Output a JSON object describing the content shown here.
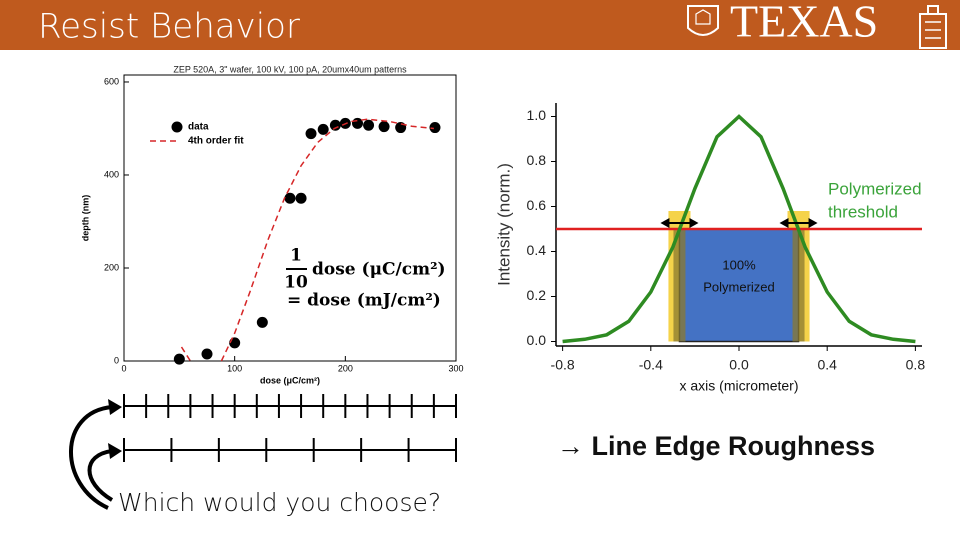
{
  "header": {
    "title": "Resist Behavior",
    "logo": "TEXAS"
  },
  "chart_data": [
    {
      "type": "scatter",
      "title": "ZEP 520A, 3\" wafer, 100 kV, 100 pA, 20umx40um patterns",
      "x_label": "dose (μC/cm²)",
      "y_label": "depth (nm)",
      "xlim": [
        0,
        300
      ],
      "ylim": [
        0,
        615
      ],
      "xticks": [
        0,
        100,
        200,
        300
      ],
      "yticks": [
        0,
        200,
        400,
        600
      ],
      "legend": "upper left",
      "series": [
        {
          "name": "data",
          "color": "#000000",
          "marker": "circle",
          "x": [
            50,
            75,
            100,
            125,
            150,
            160,
            169,
            180,
            191,
            200,
            211,
            221,
            235,
            250,
            281
          ],
          "values": [
            4,
            15,
            39,
            83,
            350,
            350,
            489,
            498,
            507,
            511,
            511,
            507,
            504,
            502,
            502
          ]
        },
        {
          "name": "4th order fit",
          "color": "#d62728",
          "line": "dashed",
          "x": [
            52,
            60,
            75,
            88,
            100,
            114,
            130,
            145,
            160,
            175,
            190,
            205,
            220,
            240,
            260,
            280
          ],
          "values": [
            30,
            0,
            null,
            0,
            60,
            150,
            260,
            350,
            420,
            470,
            500,
            515,
            520,
            515,
            505,
            500
          ]
        }
      ],
      "annotation": {
        "numerator": "1",
        "denominator": "10",
        "lhs": "dose (μC/cm²)",
        "rhs": "= dose (mJ/cm²)"
      }
    },
    {
      "type": "line",
      "x_label": "x axis (micrometer)",
      "y_label": "Intensity (norm.)",
      "xlim": [
        -0.83,
        0.83
      ],
      "ylim": [
        -0.02,
        1.06
      ],
      "xticks": [
        {
          "value": -0.8,
          "label": "-0.8"
        },
        {
          "value": -0.4,
          "label": "-0.4"
        },
        {
          "value": 0,
          "label": "0.0"
        },
        0.4,
        0.8
      ],
      "yticks": [
        {
          "value": 0,
          "label": "0.0"
        },
        0.2,
        0.4,
        0.6,
        0.8,
        {
          "value": 1,
          "label": "1.0"
        }
      ],
      "series": [
        {
          "color": "#2e8b22",
          "x": [
            -0.8,
            -0.7,
            -0.6,
            -0.5,
            -0.4,
            -0.3,
            -0.2,
            -0.1,
            0,
            0.1,
            0.2,
            0.3,
            0.4,
            0.5,
            0.6,
            0.7,
            0.8
          ],
          "values": [
            0,
            0.01,
            0.03,
            0.09,
            0.22,
            0.42,
            0.68,
            0.91,
            1.0,
            0.91,
            0.68,
            0.42,
            0.22,
            0.09,
            0.03,
            0.01,
            0
          ]
        }
      ],
      "threshold": {
        "value": 0.5,
        "color": "#e02020",
        "label": [
          "Polymerized",
          "threshold"
        ],
        "label_color": "#3aa33a"
      },
      "polymerized_region": {
        "x": [
          -0.27,
          0.27
        ],
        "y": [
          0,
          0.5
        ],
        "color": "#4472c4",
        "label": [
          "100%",
          "Polymerized"
        ]
      },
      "edge_bands": [
        [
          -0.32,
          -0.22
        ],
        [
          0.22,
          0.32
        ]
      ],
      "band_top": 0.58,
      "band_color": "#f5d34a"
    }
  ],
  "question": "Which would you choose?",
  "conclusion": "→ Line Edge Roughness"
}
